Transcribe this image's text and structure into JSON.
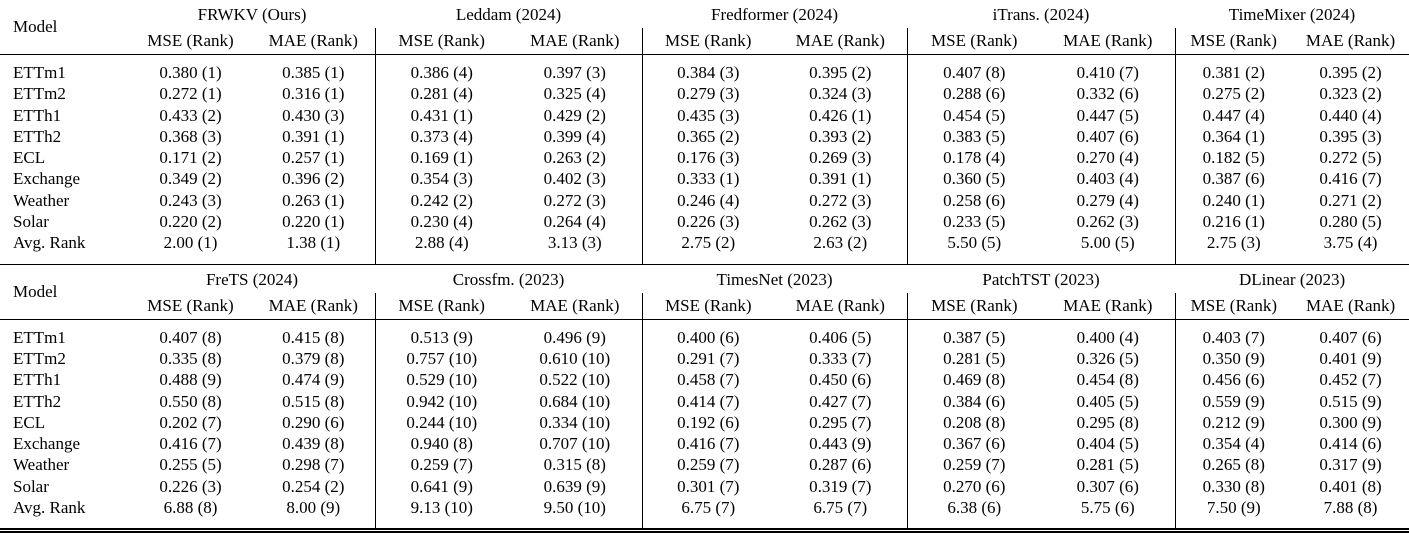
{
  "colors": {
    "background": "#ffffff",
    "text": "#000000",
    "rule": "#000000"
  },
  "tables": [
    {
      "model_header": "Model",
      "sub_headers": [
        "MSE (Rank)",
        "MAE (Rank)"
      ],
      "groups": [
        {
          "title": "FRWKV (Ours)"
        },
        {
          "title": "Leddam (2024)"
        },
        {
          "title": "Fredformer (2024)"
        },
        {
          "title": "iTrans. (2024)"
        },
        {
          "title": "TimeMixer (2024)"
        }
      ],
      "rows": [
        {
          "label": "ETTm1",
          "values": [
            "0.380 (1)",
            "0.385 (1)",
            "0.386 (4)",
            "0.397 (3)",
            "0.384 (3)",
            "0.395 (2)",
            "0.407 (8)",
            "0.410 (7)",
            "0.381 (2)",
            "0.395 (2)"
          ]
        },
        {
          "label": "ETTm2",
          "values": [
            "0.272 (1)",
            "0.316 (1)",
            "0.281 (4)",
            "0.325 (4)",
            "0.279 (3)",
            "0.324 (3)",
            "0.288 (6)",
            "0.332 (6)",
            "0.275 (2)",
            "0.323 (2)"
          ]
        },
        {
          "label": "ETTh1",
          "values": [
            "0.433 (2)",
            "0.430 (3)",
            "0.431 (1)",
            "0.429 (2)",
            "0.435 (3)",
            "0.426 (1)",
            "0.454 (5)",
            "0.447 (5)",
            "0.447 (4)",
            "0.440 (4)"
          ]
        },
        {
          "label": "ETTh2",
          "values": [
            "0.368 (3)",
            "0.391 (1)",
            "0.373 (4)",
            "0.399 (4)",
            "0.365 (2)",
            "0.393 (2)",
            "0.383 (5)",
            "0.407 (6)",
            "0.364 (1)",
            "0.395 (3)"
          ]
        },
        {
          "label": "ECL",
          "values": [
            "0.171 (2)",
            "0.257 (1)",
            "0.169 (1)",
            "0.263 (2)",
            "0.176 (3)",
            "0.269 (3)",
            "0.178 (4)",
            "0.270 (4)",
            "0.182 (5)",
            "0.272 (5)"
          ]
        },
        {
          "label": "Exchange",
          "values": [
            "0.349 (2)",
            "0.396 (2)",
            "0.354 (3)",
            "0.402 (3)",
            "0.333 (1)",
            "0.391 (1)",
            "0.360 (5)",
            "0.403 (4)",
            "0.387 (6)",
            "0.416 (7)"
          ]
        },
        {
          "label": "Weather",
          "values": [
            "0.243 (3)",
            "0.263 (1)",
            "0.242 (2)",
            "0.272 (3)",
            "0.246 (4)",
            "0.272 (3)",
            "0.258 (6)",
            "0.279 (4)",
            "0.240 (1)",
            "0.271 (2)"
          ]
        },
        {
          "label": "Solar",
          "values": [
            "0.220 (2)",
            "0.220 (1)",
            "0.230 (4)",
            "0.264 (4)",
            "0.226 (3)",
            "0.262 (3)",
            "0.233 (5)",
            "0.262 (3)",
            "0.216 (1)",
            "0.280 (5)"
          ]
        },
        {
          "label": "Avg. Rank",
          "values": [
            "2.00 (1)",
            "1.38 (1)",
            "2.88 (4)",
            "3.13 (3)",
            "2.75 (2)",
            "2.63 (2)",
            "5.50 (5)",
            "5.00 (5)",
            "2.75 (3)",
            "3.75 (4)"
          ]
        }
      ]
    },
    {
      "model_header": "Model",
      "sub_headers": [
        "MSE (Rank)",
        "MAE (Rank)"
      ],
      "groups": [
        {
          "title": "FreTS (2024)"
        },
        {
          "title": "Crossfm. (2023)"
        },
        {
          "title": "TimesNet (2023)"
        },
        {
          "title": "PatchTST (2023)"
        },
        {
          "title": "DLinear (2023)"
        }
      ],
      "rows": [
        {
          "label": "ETTm1",
          "values": [
            "0.407 (8)",
            "0.415 (8)",
            "0.513 (9)",
            "0.496 (9)",
            "0.400 (6)",
            "0.406 (5)",
            "0.387 (5)",
            "0.400 (4)",
            "0.403 (7)",
            "0.407 (6)"
          ]
        },
        {
          "label": "ETTm2",
          "values": [
            "0.335 (8)",
            "0.379 (8)",
            "0.757 (10)",
            "0.610 (10)",
            "0.291 (7)",
            "0.333 (7)",
            "0.281 (5)",
            "0.326 (5)",
            "0.350 (9)",
            "0.401 (9)"
          ]
        },
        {
          "label": "ETTh1",
          "values": [
            "0.488 (9)",
            "0.474 (9)",
            "0.529 (10)",
            "0.522 (10)",
            "0.458 (7)",
            "0.450 (6)",
            "0.469 (8)",
            "0.454 (8)",
            "0.456 (6)",
            "0.452 (7)"
          ]
        },
        {
          "label": "ETTh2",
          "values": [
            "0.550 (8)",
            "0.515 (8)",
            "0.942 (10)",
            "0.684 (10)",
            "0.414 (7)",
            "0.427 (7)",
            "0.384 (6)",
            "0.405 (5)",
            "0.559 (9)",
            "0.515 (9)"
          ]
        },
        {
          "label": "ECL",
          "values": [
            "0.202 (7)",
            "0.290 (6)",
            "0.244 (10)",
            "0.334 (10)",
            "0.192 (6)",
            "0.295 (7)",
            "0.208 (8)",
            "0.295 (8)",
            "0.212 (9)",
            "0.300 (9)"
          ]
        },
        {
          "label": "Exchange",
          "values": [
            "0.416 (7)",
            "0.439 (8)",
            "0.940 (8)",
            "0.707 (10)",
            "0.416 (7)",
            "0.443 (9)",
            "0.367 (6)",
            "0.404 (5)",
            "0.354 (4)",
            "0.414 (6)"
          ]
        },
        {
          "label": "Weather",
          "values": [
            "0.255 (5)",
            "0.298 (7)",
            "0.259 (7)",
            "0.315 (8)",
            "0.259 (7)",
            "0.287 (6)",
            "0.259 (7)",
            "0.281 (5)",
            "0.265 (8)",
            "0.317 (9)"
          ]
        },
        {
          "label": "Solar",
          "values": [
            "0.226 (3)",
            "0.254 (2)",
            "0.641 (9)",
            "0.639 (9)",
            "0.301 (7)",
            "0.319 (7)",
            "0.270 (6)",
            "0.307 (6)",
            "0.330 (8)",
            "0.401 (8)"
          ]
        },
        {
          "label": "Avg. Rank",
          "values": [
            "6.88 (8)",
            "8.00 (9)",
            "9.13 (10)",
            "9.50 (10)",
            "6.75 (7)",
            "6.75 (7)",
            "6.38 (6)",
            "5.75 (6)",
            "7.50 (9)",
            "7.88 (8)"
          ]
        }
      ]
    }
  ]
}
